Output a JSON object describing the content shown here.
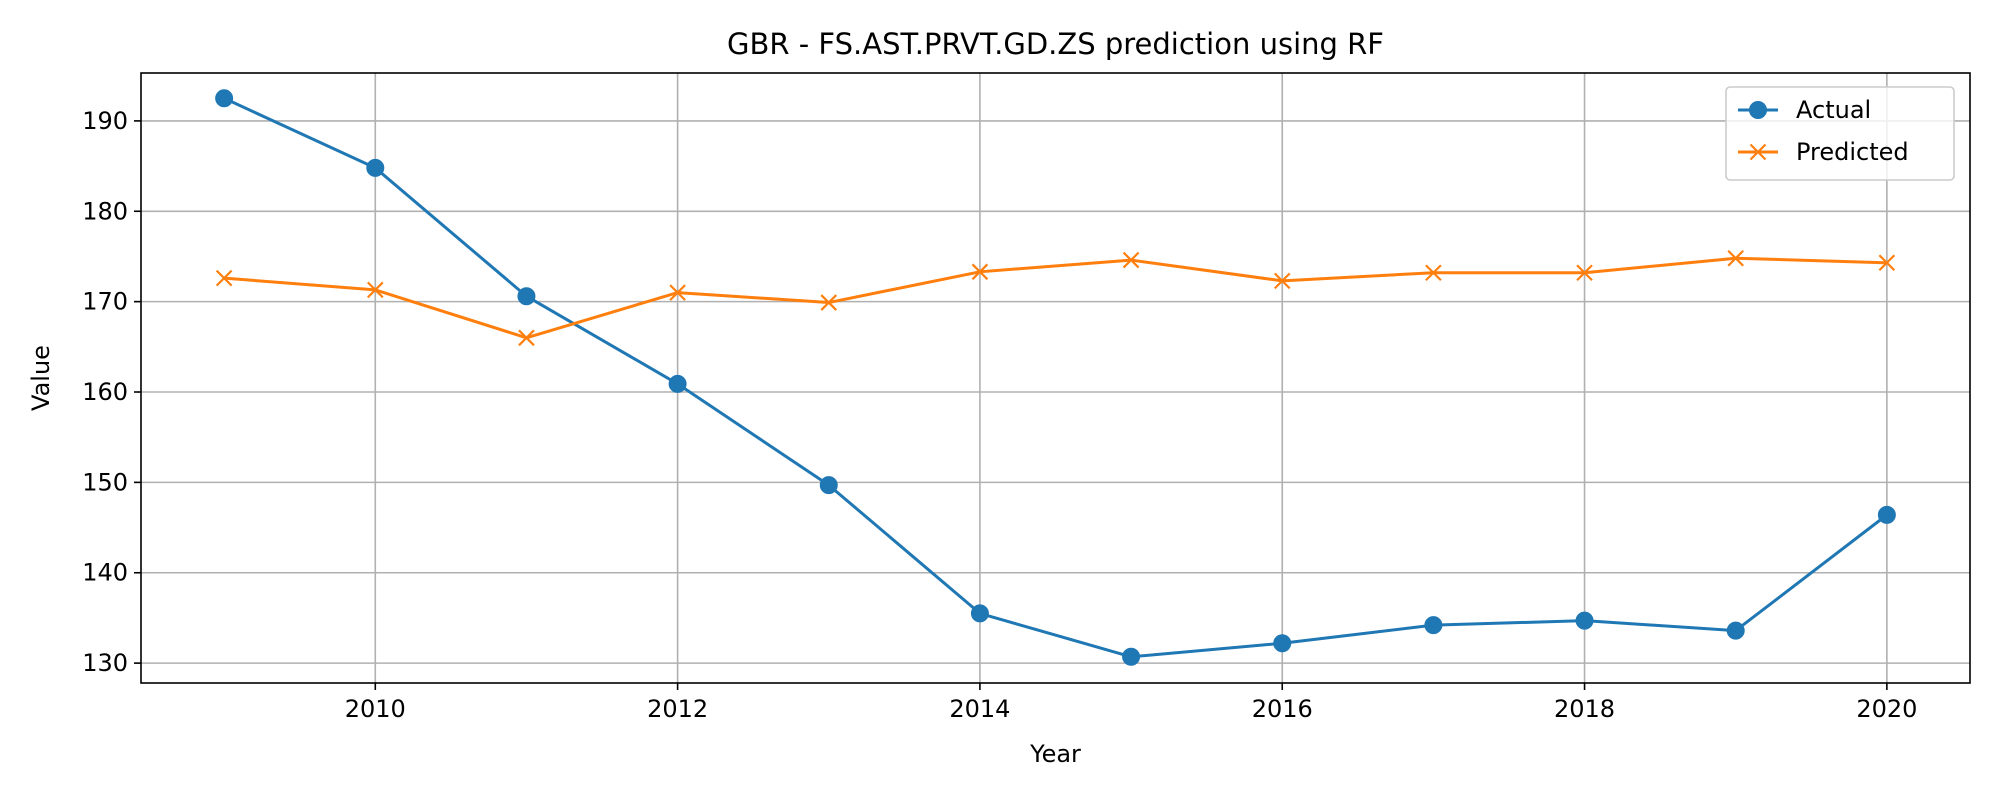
{
  "chart_data": {
    "type": "line",
    "title": "GBR - FS.AST.PRVT.GD.ZS prediction using RF",
    "xlabel": "Year",
    "ylabel": "Value",
    "x": [
      2009,
      2010,
      2011,
      2012,
      2013,
      2014,
      2015,
      2016,
      2017,
      2018,
      2019,
      2020
    ],
    "xlim": [
      2008.45,
      2020.55
    ],
    "ylim": [
      127.8,
      195.3
    ],
    "x_ticks": [
      2010,
      2012,
      2014,
      2016,
      2018,
      2020
    ],
    "x_tick_labels": [
      "2010",
      "2012",
      "2014",
      "2016",
      "2018",
      "2020"
    ],
    "y_ticks": [
      130,
      140,
      150,
      160,
      170,
      180,
      190
    ],
    "y_tick_labels": [
      "130",
      "140",
      "150",
      "160",
      "170",
      "180",
      "190"
    ],
    "grid": true,
    "legend_position": "top-right",
    "series": [
      {
        "name": "Actual",
        "color": "#1f77b4",
        "marker": "circle",
        "values": [
          192.5,
          184.8,
          170.6,
          160.9,
          149.7,
          135.5,
          130.7,
          132.2,
          134.2,
          134.7,
          133.6,
          146.4
        ]
      },
      {
        "name": "Predicted",
        "color": "#ff7f0e",
        "marker": "x",
        "values": [
          172.6,
          171.3,
          166.0,
          171.0,
          169.9,
          173.3,
          174.6,
          172.3,
          173.2,
          173.2,
          174.8,
          174.3
        ]
      }
    ]
  }
}
